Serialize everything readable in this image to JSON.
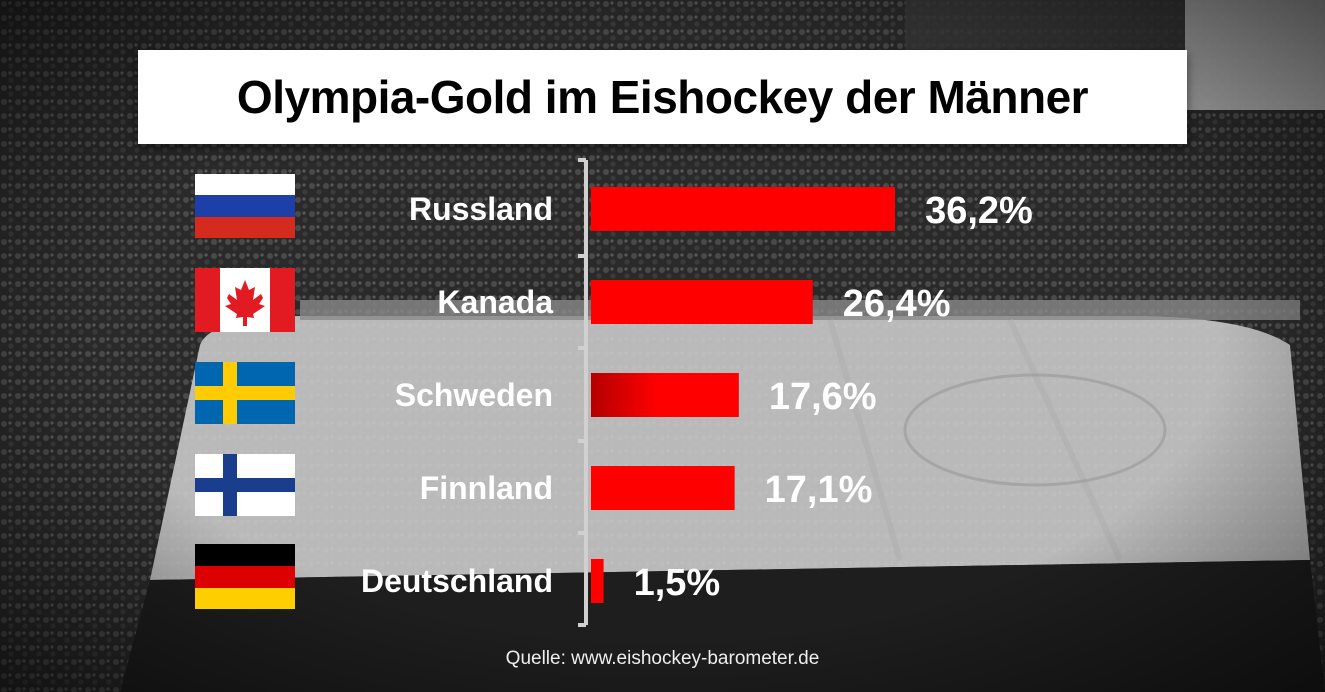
{
  "title": "Olympia-Gold im Eishockey der Männer",
  "source": "Quelle: www.eishockey-barometer.de",
  "colors": {
    "bar": "#ff0000",
    "bar_dark": "#b40000",
    "text": "#ffffff",
    "title_bg": "#ffffff"
  },
  "chart_data": {
    "type": "bar",
    "orientation": "horizontal",
    "categories": [
      "Russland",
      "Kanada",
      "Schweden",
      "Finnland",
      "Deutschland"
    ],
    "values": [
      36.2,
      26.4,
      17.6,
      17.1,
      1.5
    ],
    "value_labels": [
      "36,2%",
      "26,4%",
      "17,6%",
      "17,1%",
      "1,5%"
    ],
    "flags": [
      "russia-flag-icon",
      "canada-flag-icon",
      "sweden-flag-icon",
      "finland-flag-icon",
      "germany-flag-icon"
    ],
    "title": "Olympia-Gold im Eishockey der Männer",
    "xlabel": "",
    "ylabel": "",
    "unit": "%",
    "grid": false,
    "legend": "none"
  }
}
